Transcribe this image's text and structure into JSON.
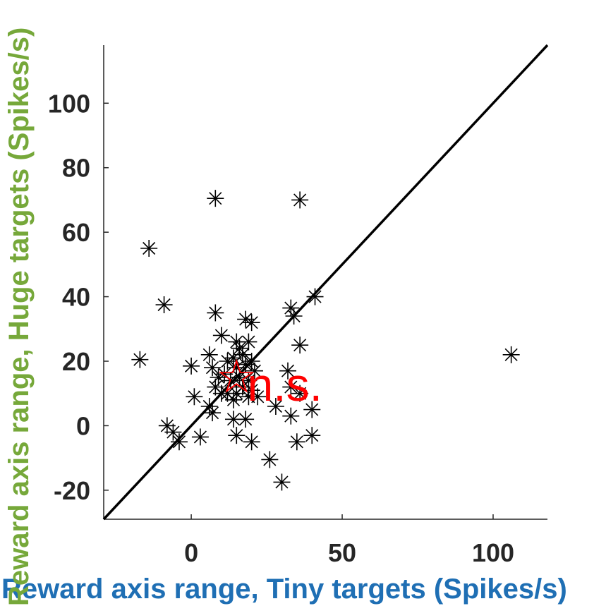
{
  "chart_data": {
    "type": "scatter",
    "title": "",
    "xlabel": "Reward axis range, Tiny targets (Spikes/s)",
    "ylabel": "Reward axis range, Huge targets (Spikes/s)",
    "xlim": [
      -29,
      118
    ],
    "ylim": [
      -29,
      118
    ],
    "x_ticks": [
      0,
      50,
      100
    ],
    "y_ticks": [
      -20,
      0,
      20,
      40,
      60,
      80,
      100
    ],
    "x_tick_labels": [
      "0",
      "50",
      "100"
    ],
    "y_tick_labels": [
      "-20",
      "0",
      "20",
      "40",
      "60",
      "80",
      "100"
    ],
    "grid": false,
    "legend": "none",
    "colors": {
      "points": "#000000",
      "identity_line": "#000000",
      "xlabel": "#1f6fb4",
      "ylabel": "#76a83a",
      "annotation": "#ff0000",
      "axes": "#262626"
    },
    "reference_line": {
      "type": "identity",
      "from": [
        -29,
        -29
      ],
      "to": [
        118,
        118
      ]
    },
    "series": [
      {
        "marker": "asterisk",
        "points": [
          [
            8,
            70.5
          ],
          [
            36,
            70
          ],
          [
            -14,
            55
          ],
          [
            -9,
            37.5
          ],
          [
            -17,
            20.5
          ],
          [
            0,
            18.5
          ],
          [
            1,
            9
          ],
          [
            3,
            -3.5
          ],
          [
            -8,
            0
          ],
          [
            -6,
            -2
          ],
          [
            -4,
            -5
          ],
          [
            6,
            22
          ],
          [
            8,
            35
          ],
          [
            10,
            28
          ],
          [
            7,
            18
          ],
          [
            9,
            15
          ],
          [
            8,
            12
          ],
          [
            10,
            10
          ],
          [
            6,
            6
          ],
          [
            7,
            4
          ],
          [
            12,
            20
          ],
          [
            11,
            16
          ],
          [
            13,
            14
          ],
          [
            12,
            10
          ],
          [
            14,
            8
          ],
          [
            15,
            26
          ],
          [
            16,
            24
          ],
          [
            14,
            21
          ],
          [
            17,
            22
          ],
          [
            15,
            18
          ],
          [
            18,
            19
          ],
          [
            16,
            15
          ],
          [
            17,
            12
          ],
          [
            15,
            10
          ],
          [
            19,
            9
          ],
          [
            18,
            33
          ],
          [
            20,
            32
          ],
          [
            19,
            26
          ],
          [
            20,
            20
          ],
          [
            21,
            17
          ],
          [
            19,
            14
          ],
          [
            20,
            11
          ],
          [
            22,
            9
          ],
          [
            14,
            2
          ],
          [
            15,
            -3
          ],
          [
            18,
            2
          ],
          [
            20,
            -5
          ],
          [
            26,
            -10.5
          ],
          [
            30,
            -17.5
          ],
          [
            28,
            6
          ],
          [
            32,
            17
          ],
          [
            33,
            12
          ],
          [
            33,
            3
          ],
          [
            35,
            -5
          ],
          [
            36,
            10
          ],
          [
            40,
            5
          ],
          [
            40,
            -3
          ],
          [
            33,
            36.5
          ],
          [
            34,
            34
          ],
          [
            36,
            25
          ],
          [
            41,
            40
          ],
          [
            106,
            22
          ]
        ]
      }
    ],
    "annotations": [
      {
        "text": "n.s.",
        "x": 31,
        "y": 13
      },
      {
        "text": "☆",
        "x": 15,
        "y": 15.5
      }
    ]
  }
}
